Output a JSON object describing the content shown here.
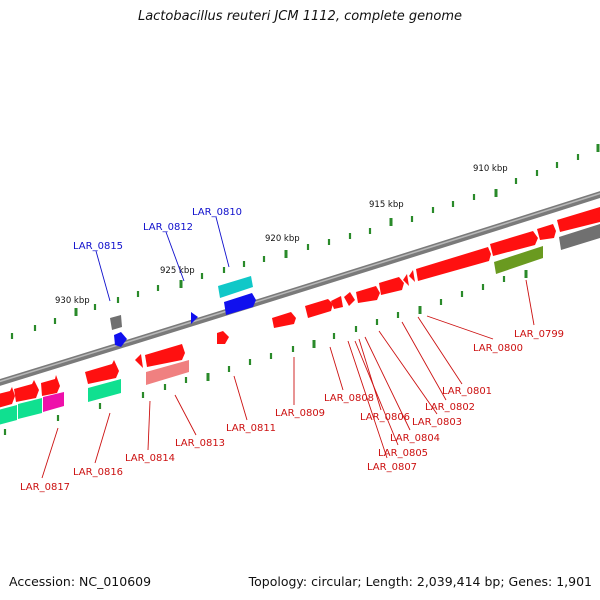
{
  "title": "Lactobacillus reuteri JCM 1112, complete genome",
  "accession_text": "Accession: NC_010609",
  "topology_text": "Topology: circular; Length: 2,039,414 bp; Genes: 1,901",
  "ruler": [
    "910 kbp",
    "915 kbp",
    "920 kbp",
    "925 kbp",
    "930 kbp"
  ],
  "colors": {
    "backbone": "#8c8c8c",
    "tick": "#2a8a2a",
    "label_blue": "#1010cc",
    "label_red": "#cc1111",
    "gene_red": "#ff1010",
    "gene_cyan": "#10c8c8",
    "gene_blue": "#1010ee",
    "gene_gray": "#707070",
    "gene_olive": "#6a9a20",
    "gene_teal": "#10e090",
    "gene_magenta": "#ee10aa",
    "gene_pink": "#f08080"
  },
  "labels_top": [
    "LAR_0815",
    "LAR_0812",
    "LAR_0810"
  ],
  "labels_bottom": [
    "LAR_0817",
    "LAR_0816",
    "LAR_0814",
    "LAR_0813",
    "LAR_0811",
    "LAR_0809",
    "LAR_0808",
    "LAR_0806",
    "LAR_0807",
    "LAR_0805",
    "LAR_0804",
    "LAR_0803",
    "LAR_0802",
    "LAR_0801",
    "LAR_0800",
    "LAR_0799"
  ]
}
